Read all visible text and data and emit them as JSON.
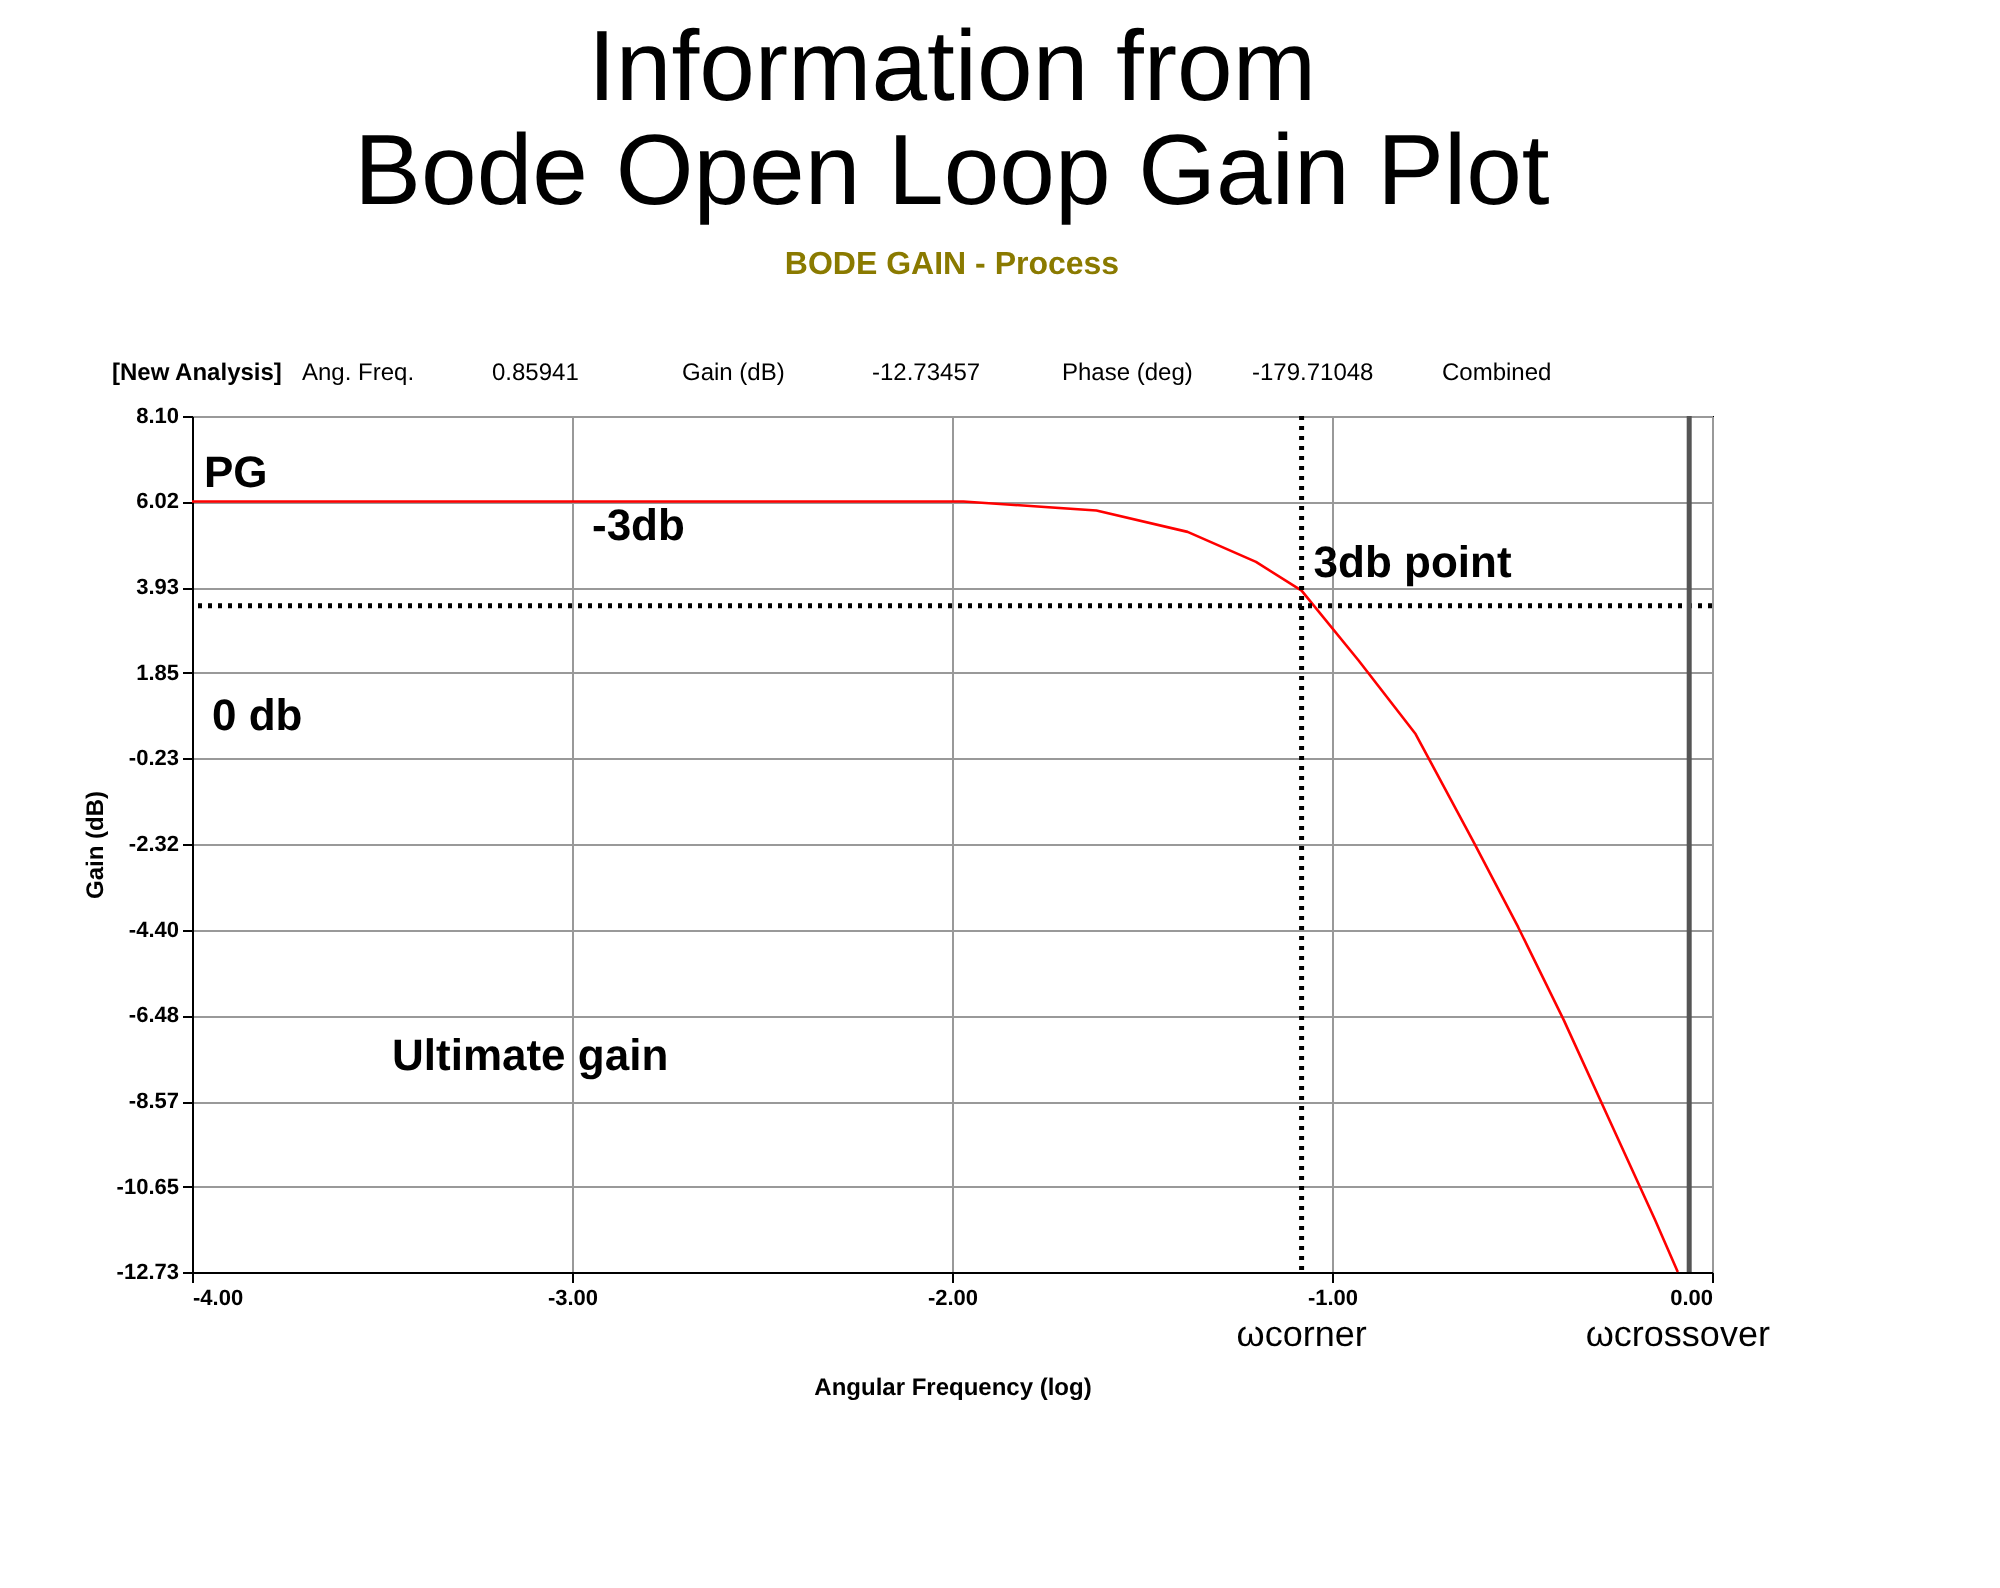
{
  "chart_data": {
    "type": "line",
    "title": "Information from\nBode Open Loop Gain Plot",
    "subtitle": "BODE GAIN - Process",
    "xlabel": "Angular Frequency (log)",
    "ylabel": "Gain (dB)",
    "x": [
      -4,
      -3,
      -2,
      -1.97,
      -1.62,
      -1.38,
      -1.2,
      -1.08,
      -0.93,
      -0.78,
      -0.63,
      -0.51,
      -0.39,
      -0.27,
      -0.15,
      -0.09
    ],
    "series": [
      {
        "color": "#ff0000",
        "values": [
          6.02,
          6.02,
          6.02,
          6.02,
          5.8,
          5.28,
          4.55,
          3.85,
          2.15,
          0.36,
          -2.22,
          -4.34,
          -6.6,
          -9.03,
          -11.46,
          -12.73
        ]
      }
    ],
    "xlim": [
      -4,
      0
    ],
    "ylim": [
      -12.73,
      8.1
    ],
    "xticks": [
      {
        "value": -4,
        "label": "-4.00"
      },
      {
        "value": -3,
        "label": "-3.00"
      },
      {
        "value": -2,
        "label": "-2.00"
      },
      {
        "value": -1,
        "label": "-1.00"
      },
      {
        "value": 0,
        "label": "0.00"
      }
    ],
    "yticks": [
      {
        "value": 8.1,
        "label": "8.10"
      },
      6.02,
      3.93,
      1.85,
      -0.23,
      -2.32,
      {
        "value": -4.4,
        "label": "-4.40"
      },
      -6.48,
      -8.57,
      -10.65,
      -12.73
    ],
    "grid": true,
    "marker": "none",
    "line_style": "solid",
    "ref_lines": [
      {
        "axis": "y",
        "value": 3.48,
        "line_style": "dotted",
        "color": "#000000"
      },
      {
        "axis": "x",
        "value": -1.08,
        "line_style": "dotted",
        "color": "#000000"
      },
      {
        "axis": "x",
        "value": -0.06,
        "line_style": "solid",
        "color": "#555555"
      }
    ],
    "annotations": [
      "[New Analysis]",
      "Ang. Freq.",
      "0.85941",
      "Gain (dB)",
      "-12.73457",
      "Phase (deg)",
      "-179.71048",
      "Combined",
      {
        "text": "PG",
        "x": -4,
        "y": 6.02
      },
      "-3db",
      {
        "text": "3db point",
        "x": -1.08,
        "y": 3.85
      },
      "0 db",
      "Ultimate gain",
      {
        "text": "ωcorner",
        "x": -1.08,
        "y": -12.73
      },
      {
        "text": "ωcrossover",
        "x": -0.09,
        "y": -12.73
      }
    ]
  }
}
